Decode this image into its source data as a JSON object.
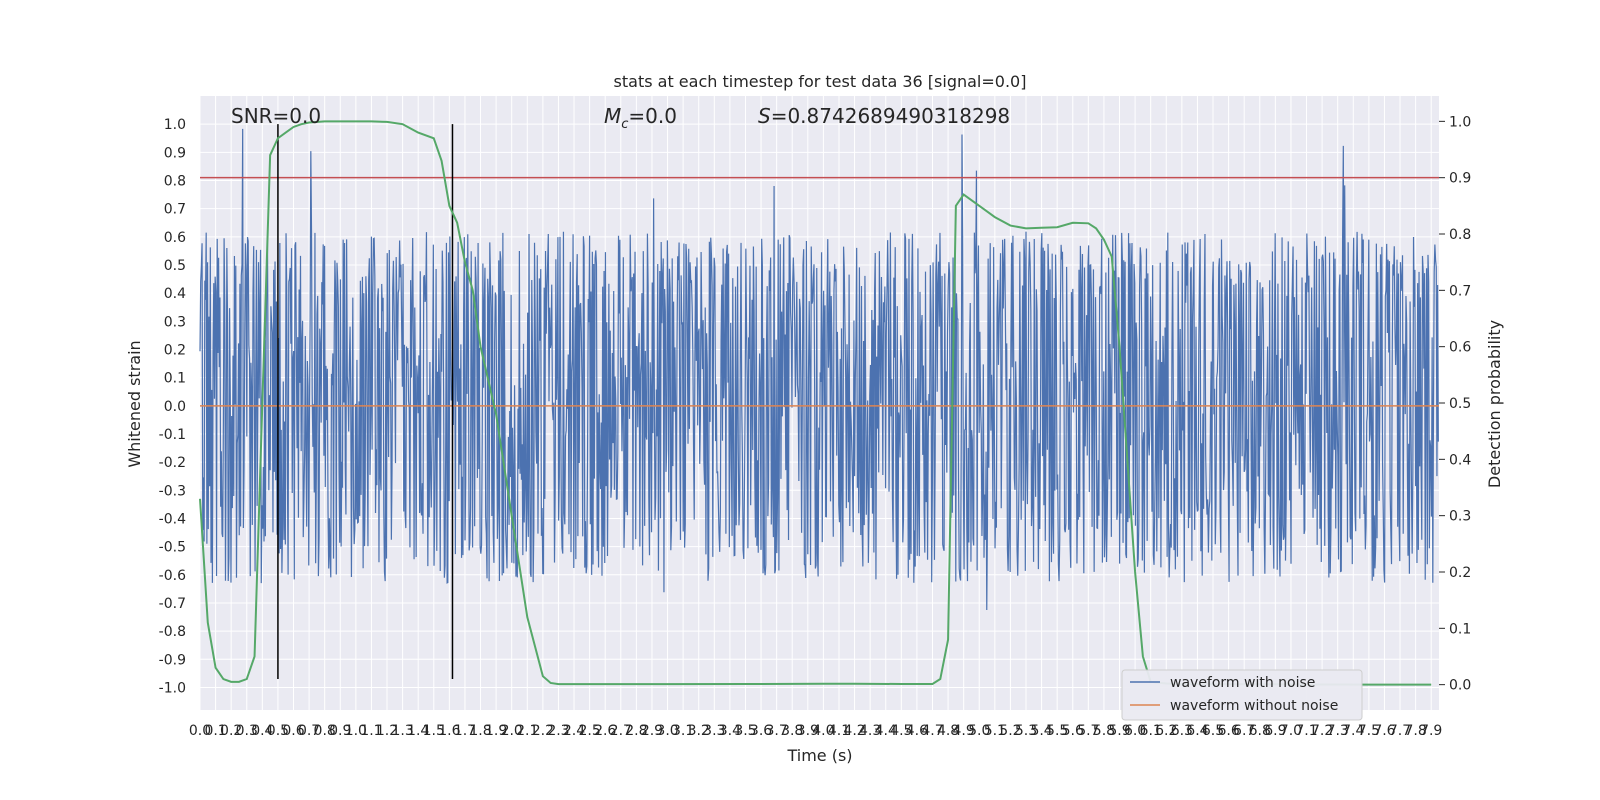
{
  "chart_data": {
    "type": "line",
    "title": "stats at each timestep for test data 36 [signal=0.0]",
    "xlabel": "Time (s)",
    "ylabel": "Whitened strain",
    "y2label": "Detection probability",
    "annotations": {
      "snr": "SNR=0.0",
      "mc_symbol": "M",
      "mc_sub": "c",
      "mc_value": "=0.0",
      "s_symbol": "S",
      "s_value": "=0.8742689490318298"
    },
    "xlim": [
      0,
      7.95
    ],
    "ylim": [
      -1.08,
      1.1
    ],
    "y2lim": [
      -0.045,
      1.045
    ],
    "x_tick_step": 0.1,
    "x_tick_count": 80,
    "yticks": [
      "-1.0",
      "-0.9",
      "-0.8",
      "-0.7",
      "-0.6",
      "-0.5",
      "-0.4",
      "-0.3",
      "-0.2",
      "-0.1",
      "0.0",
      "0.1",
      "0.2",
      "0.3",
      "0.4",
      "0.5",
      "0.6",
      "0.7",
      "0.8",
      "0.9",
      "1.0"
    ],
    "y2ticks": [
      "0.0",
      "0.1",
      "0.2",
      "0.3",
      "0.4",
      "0.5",
      "0.6",
      "0.7",
      "0.8",
      "0.9",
      "1.0"
    ],
    "grid": true,
    "legend_position": "lower-right",
    "series": [
      {
        "name": "waveform with noise",
        "color": "#4c72b0",
        "axis": "left",
        "kind": "noise",
        "band": [
          -0.38,
          0.4
        ],
        "peak_range": [
          -0.83,
          1.0
        ]
      },
      {
        "name": "waveform without noise",
        "color": "#dd8452",
        "axis": "left",
        "values_constant": 0.0
      },
      {
        "color": "#55a868",
        "axis": "right",
        "x": [
          0.0,
          0.05,
          0.1,
          0.15,
          0.2,
          0.25,
          0.3,
          0.35,
          0.4,
          0.45,
          0.5,
          0.55,
          0.6,
          0.65,
          0.7,
          0.8,
          0.9,
          1.0,
          1.1,
          1.2,
          1.3,
          1.4,
          1.5,
          1.55,
          1.6,
          1.65,
          1.7,
          1.75,
          1.8,
          1.9,
          2.0,
          2.1,
          2.2,
          2.25,
          2.3,
          2.4,
          2.6,
          3.0,
          3.5,
          4.0,
          4.2,
          4.5,
          4.7,
          4.75,
          4.8,
          4.85,
          4.9,
          4.95,
          5.0,
          5.05,
          5.1,
          5.2,
          5.3,
          5.4,
          5.5,
          5.6,
          5.7,
          5.75,
          5.8,
          5.85,
          5.9,
          5.95,
          6.0,
          6.05,
          6.1,
          6.2,
          6.3,
          6.5,
          7.0,
          7.5,
          7.9
        ],
        "values": [
          0.33,
          0.11,
          0.03,
          0.01,
          0.005,
          0.005,
          0.01,
          0.05,
          0.5,
          0.94,
          0.97,
          0.98,
          0.99,
          0.995,
          0.998,
          1.0,
          1.0,
          1.0,
          1.0,
          0.999,
          0.995,
          0.98,
          0.97,
          0.93,
          0.85,
          0.82,
          0.75,
          0.7,
          0.6,
          0.48,
          0.3,
          0.12,
          0.015,
          0.003,
          0.001,
          0.001,
          0.001,
          0.001,
          0.0012,
          0.0015,
          0.0015,
          0.0012,
          0.0012,
          0.01,
          0.08,
          0.85,
          0.87,
          0.86,
          0.85,
          0.84,
          0.83,
          0.815,
          0.81,
          0.811,
          0.812,
          0.82,
          0.819,
          0.81,
          0.79,
          0.76,
          0.6,
          0.4,
          0.2,
          0.05,
          0.005,
          0.002,
          0.001,
          0.001,
          0.0005,
          0.0,
          0.0
        ]
      }
    ],
    "threshold_line": {
      "value": 0.9,
      "axis": "right",
      "color": "#c44e52"
    },
    "vlines": [
      {
        "x": 0.5,
        "y_range": [
          -0.97,
          1.0
        ]
      },
      {
        "x": 1.62,
        "y_range": [
          -0.97,
          1.0
        ]
      }
    ]
  }
}
